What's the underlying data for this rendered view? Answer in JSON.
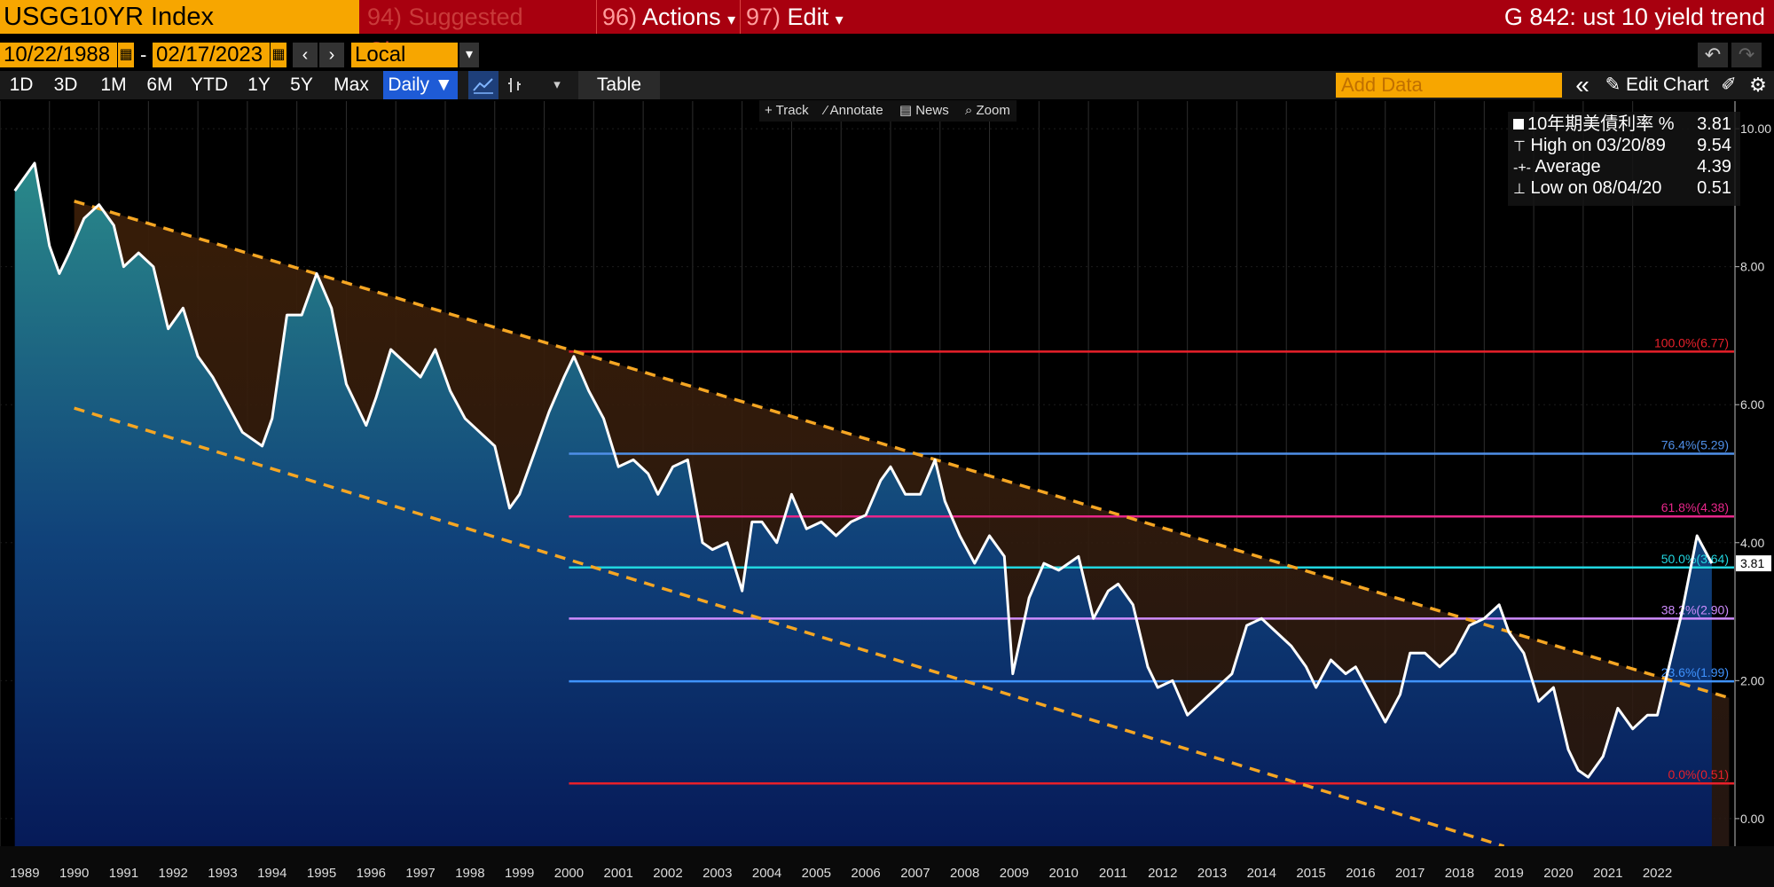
{
  "header": {
    "ticker": "USGG10YR Index",
    "menu_suggested": {
      "num": "94)",
      "label": "Suggested Charts"
    },
    "menu_actions": {
      "num": "96)",
      "label": "Actions",
      "caret": "▾"
    },
    "menu_edit": {
      "num": "97)",
      "label": "Edit",
      "caret": "▾"
    },
    "chart_title": "G 842: ust 10 yield trend"
  },
  "dates": {
    "start": "10/22/1988",
    "separator": "-",
    "end": "02/17/2023",
    "currency": "Local CCY",
    "prev": "‹",
    "next": "›",
    "dropdown": "▾"
  },
  "periods": [
    "1D",
    "3D",
    "1M",
    "6M",
    "YTD",
    "1Y",
    "5Y",
    "Max"
  ],
  "frequency": "Daily ▼",
  "table_label": "Table",
  "add_data_placeholder": "Add Data",
  "collapse_glyph": "«",
  "edit_chart_label": "Edit Chart",
  "chart_tools": [
    "Track",
    "Annotate",
    "News",
    "Zoom"
  ],
  "legend": {
    "series_name": "10年期美債利率 %",
    "last": "3.81",
    "high_label": "High on 03/20/89",
    "high_value": "9.54",
    "avg_label": "Average",
    "avg_value": "4.39",
    "low_label": "Low on 08/04/20",
    "low_value": "0.51"
  },
  "colors": {
    "title_bar": "#a8000f",
    "ticker_bg": "#f7a600",
    "line": "#ffffff",
    "channel": "#f5a623",
    "fib_100": "#e8202a",
    "fib_764": "#4f8fe8",
    "fib_618": "#e8268a",
    "fib_50": "#21d6e0",
    "fib_382": "#cf8cff",
    "fib_236": "#3f93ff",
    "fib_0": "#e8202a"
  },
  "chart_data": {
    "type": "line",
    "ylim": [
      -0.4,
      10.4
    ],
    "y_ticks": [
      "10.00",
      "8.00",
      "6.00",
      "4.00",
      "2.00",
      "0.00"
    ],
    "x_labels": [
      "1989",
      "1990",
      "1991",
      "1992",
      "1993",
      "1994",
      "1995",
      "1996",
      "1997",
      "1998",
      "1999",
      "2000",
      "2001",
      "2002",
      "2003",
      "2004",
      "2005",
      "2006",
      "2007",
      "2008",
      "2009",
      "2010",
      "2011",
      "2012",
      "2013",
      "2014",
      "2015",
      "2016",
      "2017",
      "2018",
      "2019",
      "2020",
      "2021",
      "2022"
    ],
    "last_value_label": "3.81",
    "series": [
      {
        "x": [
          1988.8,
          1989.2,
          1989.5,
          1989.7,
          1989.9,
          1990.2,
          1990.5,
          1990.8,
          1991.0,
          1991.3,
          1991.6,
          1991.9,
          1992.2,
          1992.5,
          1992.8,
          1993.1,
          1993.4,
          1993.8,
          1994.0,
          1994.3,
          1994.6,
          1994.9,
          1995.2,
          1995.5,
          1995.9,
          1996.1,
          1996.4,
          1996.7,
          1997.0,
          1997.3,
          1997.6,
          1997.9,
          1998.2,
          1998.5,
          1998.8,
          1999.0,
          1999.3,
          1999.6,
          1999.9,
          2000.1,
          2000.4,
          2000.7,
          2001.0,
          2001.3,
          2001.6,
          2001.8,
          2002.1,
          2002.4,
          2002.7,
          2002.9,
          2003.2,
          2003.5,
          2003.7,
          2003.9,
          2004.2,
          2004.5,
          2004.8,
          2005.1,
          2005.4,
          2005.7,
          2006.0,
          2006.3,
          2006.5,
          2006.8,
          2007.1,
          2007.4,
          2007.6,
          2007.9,
          2008.2,
          2008.5,
          2008.8,
          2008.97,
          2009.3,
          2009.6,
          2009.9,
          2010.3,
          2010.6,
          2010.9,
          2011.1,
          2011.4,
          2011.7,
          2011.9,
          2012.2,
          2012.5,
          2012.8,
          2013.1,
          2013.4,
          2013.7,
          2014.0,
          2014.3,
          2014.6,
          2014.9,
          2015.1,
          2015.4,
          2015.7,
          2015.9,
          2016.2,
          2016.5,
          2016.8,
          2017.0,
          2017.3,
          2017.6,
          2017.9,
          2018.2,
          2018.5,
          2018.8,
          2019.0,
          2019.3,
          2019.6,
          2019.9,
          2020.2,
          2020.4,
          2020.6,
          2020.9,
          2021.2,
          2021.5,
          2021.8,
          2022.0,
          2022.3,
          2022.5,
          2022.8,
          2022.95,
          2023.1
        ],
        "y": [
          9.1,
          9.5,
          8.3,
          7.9,
          8.2,
          8.7,
          8.9,
          8.6,
          8.0,
          8.2,
          8.0,
          7.1,
          7.4,
          6.7,
          6.4,
          6.0,
          5.6,
          5.4,
          5.8,
          7.3,
          7.3,
          7.9,
          7.4,
          6.3,
          5.7,
          6.1,
          6.8,
          6.6,
          6.4,
          6.8,
          6.2,
          5.8,
          5.6,
          5.4,
          4.5,
          4.7,
          5.3,
          5.9,
          6.4,
          6.7,
          6.2,
          5.8,
          5.1,
          5.2,
          5.0,
          4.7,
          5.1,
          5.2,
          4.0,
          3.9,
          4.0,
          3.3,
          4.3,
          4.3,
          4.0,
          4.7,
          4.2,
          4.3,
          4.1,
          4.3,
          4.4,
          4.9,
          5.1,
          4.7,
          4.7,
          5.2,
          4.6,
          4.1,
          3.7,
          4.1,
          3.8,
          2.1,
          3.2,
          3.7,
          3.6,
          3.8,
          2.9,
          3.3,
          3.4,
          3.1,
          2.2,
          1.9,
          2.0,
          1.5,
          1.7,
          1.9,
          2.1,
          2.8,
          2.9,
          2.7,
          2.5,
          2.2,
          1.9,
          2.3,
          2.1,
          2.2,
          1.8,
          1.4,
          1.8,
          2.4,
          2.4,
          2.2,
          2.4,
          2.8,
          2.9,
          3.1,
          2.7,
          2.4,
          1.7,
          1.9,
          1.0,
          0.7,
          0.6,
          0.9,
          1.6,
          1.3,
          1.5,
          1.5,
          2.4,
          3.0,
          4.1,
          3.9,
          3.7
        ]
      }
    ],
    "channel": {
      "upper": [
        [
          1990.0,
          8.95
        ],
        [
          2023.45,
          1.75
        ]
      ],
      "lower": [
        [
          1990.0,
          5.95
        ],
        [
          2018.9,
          -0.4
        ]
      ]
    },
    "fibonacci": [
      {
        "label": "100.0%(6.77)",
        "level": 6.77
      },
      {
        "label": "76.4%(5.29)",
        "level": 5.29
      },
      {
        "label": "61.8%(4.38)",
        "level": 4.38
      },
      {
        "label": "50.0%(3.64)",
        "level": 3.64
      },
      {
        "label": "38.2%(2.90)",
        "level": 2.9
      },
      {
        "label": "23.6%(1.99)",
        "level": 1.99
      },
      {
        "label": "0.0%(0.51)",
        "level": 0.51
      }
    ],
    "fibonacci_start_x": 2000.0,
    "grid": true
  }
}
